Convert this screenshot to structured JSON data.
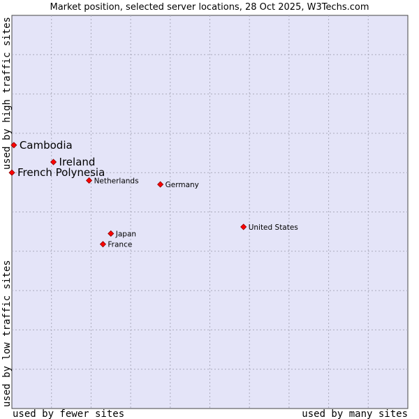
{
  "chart_data": {
    "type": "scatter",
    "title": "Market position, selected server locations, 28 Oct 2025, W3Techs.com",
    "xlabel_left": "used by fewer sites",
    "xlabel_right": "used by many sites",
    "ylabel_top": "used by high traffic sites",
    "ylabel_bottom": "used by low traffic sites",
    "xlim": [
      0,
      10
    ],
    "ylim": [
      0,
      10
    ],
    "grid": true,
    "points": [
      {
        "name": "Cambodia",
        "x": 0.05,
        "y": 6.7,
        "emphasis": true
      },
      {
        "name": "Ireland",
        "x": 1.05,
        "y": 6.27,
        "emphasis": true
      },
      {
        "name": "French Polynesia",
        "x": 0.0,
        "y": 6.0,
        "emphasis": true
      },
      {
        "name": "Netherlands",
        "x": 1.95,
        "y": 5.8,
        "emphasis": false
      },
      {
        "name": "Germany",
        "x": 3.75,
        "y": 5.7,
        "emphasis": false
      },
      {
        "name": "United States",
        "x": 5.85,
        "y": 4.62,
        "emphasis": false
      },
      {
        "name": "Japan",
        "x": 2.5,
        "y": 4.45,
        "emphasis": false
      },
      {
        "name": "France",
        "x": 2.3,
        "y": 4.18,
        "emphasis": false
      }
    ],
    "colors": {
      "plot_background": "#e4e4f8",
      "grid": "#aaaabb",
      "border": "#444444",
      "marker_fill": "#ff0000",
      "marker_stroke": "#880000"
    }
  }
}
